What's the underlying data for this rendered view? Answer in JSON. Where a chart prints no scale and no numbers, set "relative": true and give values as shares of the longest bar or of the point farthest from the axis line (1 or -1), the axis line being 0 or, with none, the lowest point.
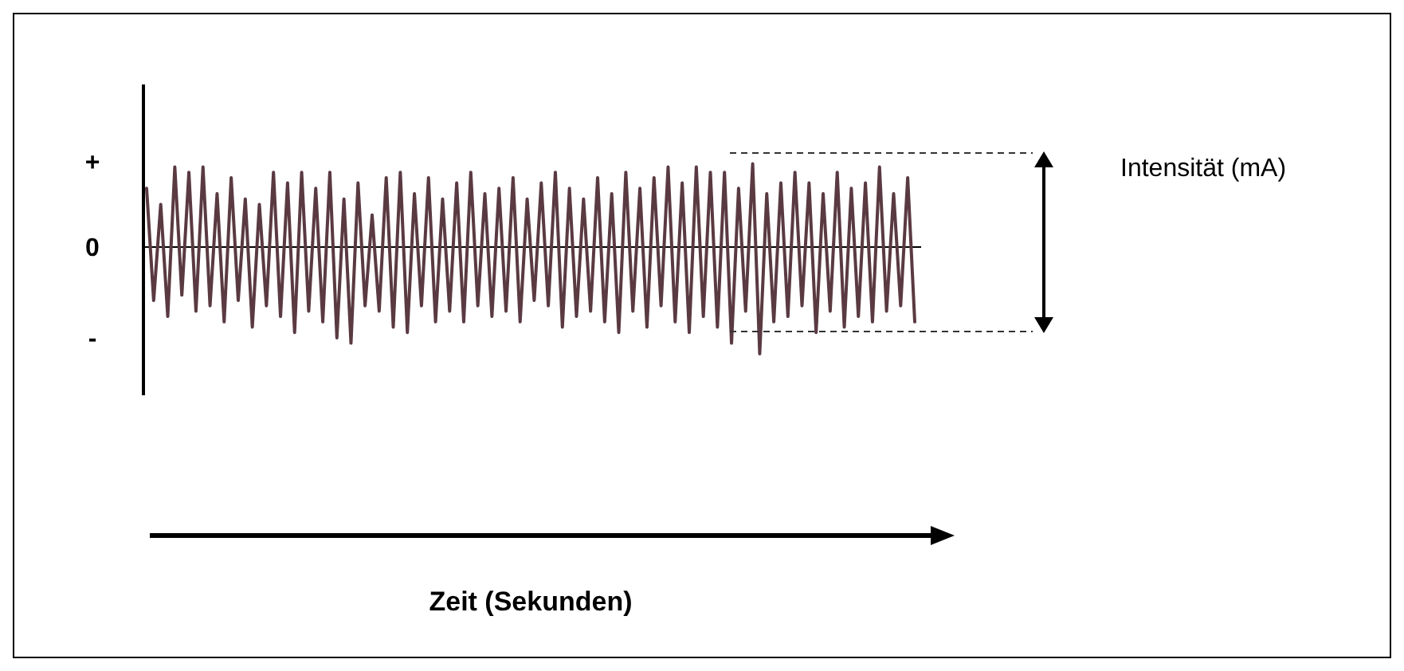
{
  "chart_data": {
    "type": "line",
    "relative": true,
    "annotations": [
      "+",
      "0",
      "-",
      "Intensität (mA)",
      "Zeit (Sekunden)"
    ],
    "categories": [
      null,
      null,
      null,
      null,
      null,
      null,
      null,
      null,
      null,
      null,
      null,
      null,
      null,
      null,
      null,
      null,
      null,
      null,
      null,
      null,
      null,
      null,
      null,
      null,
      null,
      null,
      null,
      null,
      null,
      null,
      null,
      null,
      null,
      null,
      null,
      null,
      null,
      null,
      null,
      null,
      null,
      null,
      null,
      null,
      null,
      null,
      null,
      null,
      null,
      null,
      null,
      null,
      null,
      null,
      null,
      null,
      null,
      null,
      null,
      null,
      null,
      null,
      null,
      null,
      null,
      null,
      null,
      null,
      null,
      null,
      null,
      null,
      null,
      null,
      null,
      null,
      null,
      null,
      null,
      null,
      null,
      null,
      null,
      null,
      null,
      null,
      null,
      null,
      null,
      null,
      null,
      null,
      null,
      null,
      null,
      null,
      null,
      null,
      null,
      null,
      null,
      null,
      null,
      null,
      null,
      null,
      null,
      null,
      null,
      null
    ],
    "series": [
      {
        "color": "#5a3a42",
        "values": [
          0.55,
          -0.5,
          0.4,
          -0.65,
          0.75,
          -0.45,
          0.7,
          -0.6,
          0.75,
          -0.55,
          0.5,
          -0.7,
          0.65,
          -0.5,
          0.45,
          -0.75,
          0.4,
          -0.55,
          0.7,
          -0.65,
          0.6,
          -0.8,
          0.7,
          -0.6,
          0.55,
          -0.7,
          0.7,
          -0.85,
          0.45,
          -0.9,
          0.6,
          -0.55,
          0.3,
          -0.6,
          0.65,
          -0.75,
          0.7,
          -0.8,
          0.5,
          -0.55,
          0.65,
          -0.7,
          0.45,
          -0.6,
          0.6,
          -0.7,
          0.7,
          -0.55,
          0.5,
          -0.65,
          0.55,
          -0.6,
          0.65,
          -0.7,
          0.45,
          -0.5,
          0.6,
          -0.55,
          0.7,
          -0.75,
          0.55,
          -0.65,
          0.45,
          -0.6,
          0.65,
          -0.7,
          0.5,
          -0.8,
          0.7,
          -0.6,
          0.55,
          -0.75,
          0.65,
          -0.55,
          0.75,
          -0.7,
          0.6,
          -0.8,
          0.75,
          -0.65,
          0.7,
          -0.75,
          0.7,
          -0.9,
          0.55,
          -0.6,
          0.78,
          -1,
          0.5,
          -0.7,
          0.6,
          -0.65,
          0.7,
          -0.55,
          0.6,
          -0.8,
          0.5,
          -0.6,
          0.7,
          -0.75,
          0.55,
          -0.65,
          0.6,
          -0.7,
          0.75,
          -0.6,
          0.5,
          -0.55,
          0.65,
          -0.7
        ]
      }
    ],
    "line_style": "solid"
  }
}
